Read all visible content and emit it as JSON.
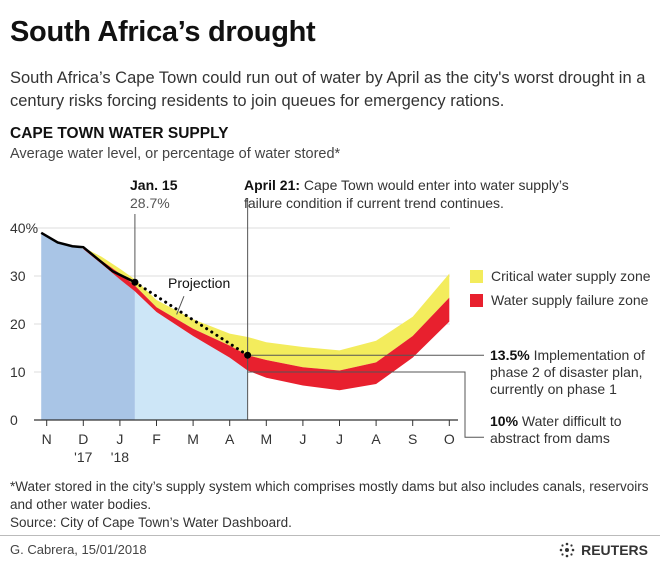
{
  "title": "South Africa’s drought",
  "intro": "South Africa’s Cape Town could run out of water by April as the city's worst drought in a century risks forcing residents to join queues for emergency rations.",
  "kicker": "CAPE TOWN WATER SUPPLY",
  "subtitle": "Average water level, or percentage of water stored*",
  "footnote": "*Water stored in the city’s supply system which comprises mostly dams but also includes canals, reservoirs and other water bodies.",
  "source": "Source: City of Cape Town’s Water Dashboard.",
  "byline": "G. Cabrera, 15/01/2018",
  "logo": "REUTERS",
  "colors": {
    "critical": "#f3ec5c",
    "failure": "#e8202e",
    "actual_area": "#a9c5e6",
    "projected_area": "#cde6f7",
    "line": "#000000"
  },
  "chart_data": {
    "type": "area",
    "title": "CAPE TOWN WATER SUPPLY",
    "ylabel": "Average water level, or percentage of water stored*",
    "ylim": [
      0,
      40
    ],
    "yticks": [
      "0",
      "10",
      "20",
      "30",
      "40%"
    ],
    "grid": true,
    "xticks": [
      "N",
      "D",
      "J",
      "F",
      "M",
      "A",
      "M",
      "J",
      "J",
      "A",
      "S",
      "O"
    ],
    "xsub": [
      "",
      "'17",
      "'18",
      "",
      "",
      "",
      "",
      "",
      "",
      "",
      "",
      ""
    ],
    "legend": {
      "position": "right",
      "items": [
        {
          "label": "Critical water supply zone",
          "color": "#f3ec5c"
        },
        {
          "label": "Water supply failure zone",
          "color": "#e8202e"
        }
      ]
    },
    "actual": {
      "x": [
        -0.15,
        0.3,
        0.7,
        1.0,
        1.4,
        1.8,
        2.41
      ],
      "y": [
        39,
        37,
        36.2,
        36,
        33.5,
        31,
        28.7
      ]
    },
    "projection": {
      "label": "Projection",
      "x": [
        2.41,
        5.49
      ],
      "y": [
        28.7,
        13.5
      ]
    },
    "zone_x": [
      1.0,
      1.5,
      2.0,
      2.41,
      3,
      4,
      5,
      5.49,
      6,
      7,
      8,
      9,
      10,
      11
    ],
    "critical_top": [
      36,
      34,
      31.5,
      29.3,
      25,
      21,
      18,
      17.3,
      16.2,
      15.2,
      14.5,
      16.5,
      21.5,
      30.5
    ],
    "failure_top": [
      35.8,
      33.2,
      30.5,
      28,
      23.5,
      19,
      15.5,
      13.5,
      12.5,
      11,
      10.3,
      12,
      17.5,
      25.5
    ],
    "failure_bottom": [
      35.6,
      32.5,
      29.3,
      26.8,
      22.5,
      17.5,
      13,
      10.3,
      8.8,
      7.2,
      6.2,
      7.5,
      13,
      20.5
    ],
    "annotations": [
      {
        "x": 2.41,
        "label": "Jan. 15",
        "value": "28.7%"
      },
      {
        "x": 5.49,
        "label": "April 21:",
        "text": "Cape Town would enter into water supply’s failure condition if current trend continues."
      },
      {
        "y": 13.5,
        "label": "13.5%",
        "text": "Implementation of phase 2 of disaster plan, currently on phase 1"
      },
      {
        "y": 10,
        "label": "10%",
        "text": "Water difficult to abstract from dams"
      }
    ]
  }
}
